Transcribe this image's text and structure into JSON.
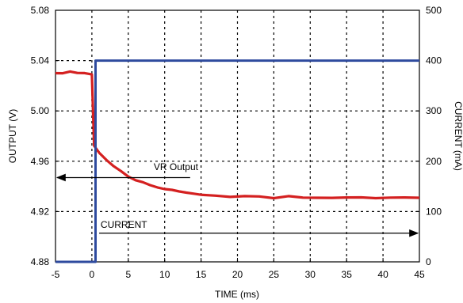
{
  "chart_data": {
    "type": "line",
    "xlabel": "TIME  (ms)",
    "ylabel_left": "OUTPUT (V)",
    "ylabel_right": "CURRENT (mA)",
    "xlim": [
      -5,
      45
    ],
    "ylim_left": [
      4.88,
      5.08
    ],
    "ylim_right": [
      0,
      500
    ],
    "grid": true,
    "x_ticks": [
      "-5",
      "0",
      "5",
      "10",
      "15",
      "20",
      "25",
      "30",
      "35",
      "40",
      "45"
    ],
    "y_left_ticks": [
      "5.08",
      "5.04",
      "5.00",
      "4.96",
      "4.92",
      "4.88"
    ],
    "y_right_ticks": [
      "500",
      "400",
      "300",
      "200",
      "100",
      "0"
    ],
    "series": [
      {
        "name": "VR Output",
        "axis": "left",
        "color": "#d42020",
        "x": [
          -5,
          -4,
          -3,
          -2,
          -1,
          0,
          0.3,
          1,
          2,
          3,
          4,
          5,
          6,
          7,
          8,
          9,
          10,
          11,
          12,
          13,
          14,
          15,
          17,
          19,
          21,
          23,
          25,
          27,
          29,
          31,
          33,
          35,
          37,
          39,
          41,
          43,
          45
        ],
        "y": [
          5.03,
          5.03,
          5.031,
          5.03,
          5.03,
          5.029,
          4.972,
          4.967,
          4.961,
          4.956,
          4.952,
          4.948,
          4.945,
          4.943,
          4.941,
          4.939,
          4.938,
          4.937,
          4.936,
          4.935,
          4.934,
          4.933,
          4.933,
          4.932,
          4.932,
          4.932,
          4.931,
          4.932,
          4.931,
          4.931,
          4.931,
          4.931,
          4.931,
          4.931,
          4.931,
          4.931,
          4.931
        ]
      },
      {
        "name": "CURRENT",
        "axis": "right",
        "color": "#2e4a9e",
        "x": [
          -5,
          0.5,
          0.5,
          45
        ],
        "y": [
          0,
          0,
          400,
          400
        ]
      }
    ],
    "annotations": [
      {
        "text": "VR Output",
        "arrow": "left"
      },
      {
        "text": "CURRENT",
        "arrow": "right"
      }
    ]
  }
}
